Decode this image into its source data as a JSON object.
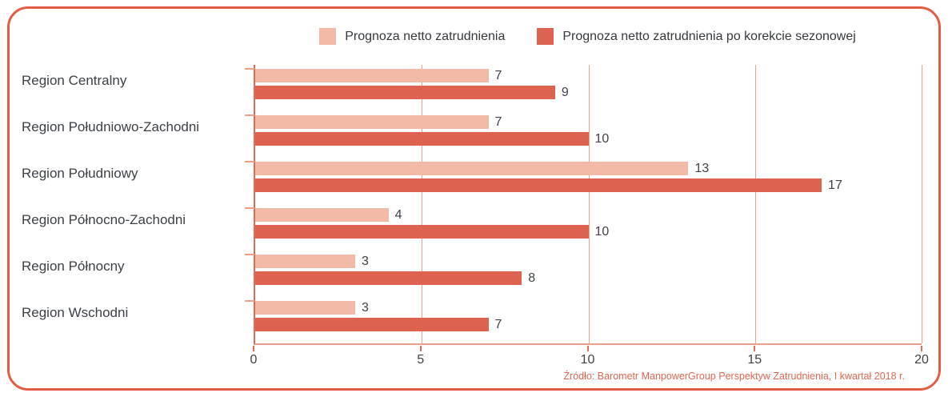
{
  "colors": {
    "accent": "#e25c48",
    "grid": "#ef9d88",
    "bar_light": "#f2b9a6",
    "bar_dark": "#dd6250",
    "text": "#3c4148",
    "source": "#e4664f"
  },
  "legend": {
    "items": [
      {
        "label": "Prognoza netto zatrudnienia",
        "color": "#f2b9a6"
      },
      {
        "label": "Prognoza netto zatrudnienia po korekcie sezonowej",
        "color": "#dd6250"
      }
    ]
  },
  "source_note": "Źródło: Barometr ManpowerGroup Perspektyw Zatrudnienia, I kwartał 2018 r.",
  "chart_data": {
    "type": "bar",
    "orientation": "horizontal",
    "title": "",
    "xlabel": "",
    "ylabel": "",
    "categories": [
      "Region Centralny",
      "Region Południowo-Zachodni",
      "Region Południowy",
      "Region Północno-Zachodni",
      "Region Północny",
      "Region Wschodni"
    ],
    "series": [
      {
        "name": "Prognoza netto zatrudnienia",
        "color": "#f2b9a6",
        "values": [
          7,
          7,
          13,
          4,
          3,
          3
        ]
      },
      {
        "name": "Prognoza netto zatrudnienia po korekcie sezonowej",
        "color": "#dd6250",
        "values": [
          9,
          10,
          17,
          10,
          8,
          7
        ]
      }
    ],
    "xlim": [
      0,
      20
    ],
    "xticks": [
      0,
      5,
      10,
      15,
      20
    ],
    "grid": true,
    "legend_position": "top"
  }
}
